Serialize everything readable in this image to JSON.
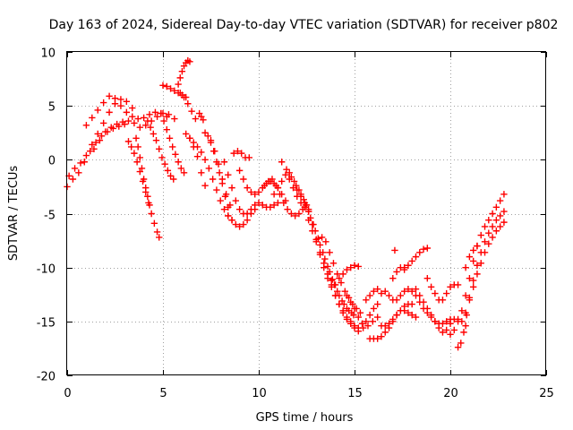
{
  "chart_data": {
    "type": "scatter",
    "title": "Day 163 of 2024, Sidereal Day-to-day VTEC variation (SDTVAR) for receiver p802",
    "xlabel": "GPS time / hours",
    "ylabel": "SDTVAR / TECUs",
    "xlim": [
      0,
      25
    ],
    "ylim": [
      -20,
      10
    ],
    "xticks": [
      "0",
      "5",
      "10",
      "15",
      "20",
      "25"
    ],
    "yticks": [
      "-20",
      "-15",
      "-10",
      "-5",
      "0",
      "5",
      "10"
    ],
    "grid": true,
    "marker": "plus",
    "color": "#ff0000",
    "series": [
      {
        "x": [
          0.0,
          0.3,
          0.6,
          0.9,
          1.2,
          1.5,
          1.8,
          2.1,
          2.4,
          2.7,
          3.0
        ],
        "y": [
          -2.5,
          -1.8,
          -1.2,
          -0.2,
          0.8,
          1.6,
          2.2,
          2.6,
          2.9,
          3.1,
          3.3
        ]
      },
      {
        "x": [
          0.1,
          0.4,
          0.7,
          1.0,
          1.3,
          1.6,
          1.9,
          2.2,
          2.5,
          2.8,
          3.1,
          3.4
        ],
        "y": [
          -1.5,
          -0.8,
          -0.3,
          0.4,
          1.4,
          2.4,
          3.4,
          4.4,
          5.2,
          5.6,
          5.4,
          4.8
        ]
      },
      {
        "x": [
          1.0,
          1.3,
          1.6,
          1.9,
          2.2,
          2.5,
          2.8,
          3.1,
          3.4,
          3.7,
          4.0,
          4.3,
          4.6,
          4.9,
          5.2
        ],
        "y": [
          3.2,
          3.9,
          4.6,
          5.3,
          5.9,
          5.7,
          5.0,
          4.4,
          4.0,
          3.8,
          3.9,
          4.2,
          4.4,
          4.3,
          4.0
        ]
      },
      {
        "x": [
          1.4,
          1.7,
          2.0,
          2.3,
          2.6,
          2.9,
          3.2,
          3.5,
          3.8,
          4.1,
          4.4,
          4.7,
          5.0,
          5.3,
          5.6
        ],
        "y": [
          1.0,
          1.8,
          2.6,
          3.0,
          3.3,
          3.5,
          3.6,
          3.4,
          3.0,
          3.2,
          3.6,
          4.0,
          4.3,
          4.2,
          3.8
        ]
      },
      {
        "x": [
          3.2,
          3.35,
          3.5,
          3.65,
          3.8,
          3.95,
          4.1,
          4.25,
          4.4,
          4.55,
          4.7,
          4.8
        ],
        "y": [
          1.7,
          1.2,
          0.6,
          -0.2,
          -1.1,
          -2.0,
          -3.0,
          -4.0,
          -5.0,
          -5.9,
          -6.7,
          -7.2
        ]
      },
      {
        "x": [
          3.6,
          3.7,
          3.8,
          3.9,
          4.0,
          4.1,
          4.2,
          4.3
        ],
        "y": [
          2.0,
          1.2,
          0.2,
          -0.8,
          -1.8,
          -2.6,
          -3.4,
          -4.2
        ]
      },
      {
        "x": [
          4.2,
          4.35,
          4.5,
          4.65,
          4.8,
          4.95,
          5.1,
          5.25,
          5.4,
          5.55
        ],
        "y": [
          3.6,
          3.0,
          2.4,
          1.8,
          1.0,
          0.2,
          -0.4,
          -1.0,
          -1.5,
          -1.8
        ]
      },
      {
        "x": [
          4.9,
          5.05,
          5.2,
          5.35,
          5.5,
          5.65,
          5.8,
          5.95,
          6.1
        ],
        "y": [
          4.3,
          3.6,
          2.8,
          2.0,
          1.2,
          0.5,
          -0.2,
          -0.8,
          -1.2
        ]
      },
      {
        "x": [
          5.0,
          5.2,
          5.4,
          5.6,
          5.8,
          6.0,
          6.2
        ],
        "y": [
          6.9,
          6.8,
          6.6,
          6.4,
          6.2,
          6.0,
          5.8
        ]
      },
      {
        "x": [
          5.8,
          5.9,
          6.0,
          6.1,
          6.2,
          6.3,
          6.4
        ],
        "y": [
          7.0,
          7.6,
          8.2,
          8.7,
          9.0,
          9.2,
          9.1
        ]
      },
      {
        "x": [
          5.9,
          6.1,
          6.3,
          6.5,
          6.7
        ],
        "y": [
          6.2,
          5.8,
          5.2,
          4.5,
          3.8
        ]
      },
      {
        "x": [
          6.9,
          7.0,
          7.1
        ],
        "y": [
          4.3,
          4.0,
          3.7
        ]
      },
      {
        "x": [
          6.4,
          6.6,
          6.8,
          7.0,
          7.2
        ],
        "y": [
          2.0,
          1.2,
          0.3,
          -1.2,
          -2.4
        ]
      },
      {
        "x": [
          6.2,
          6.4,
          6.6,
          6.8,
          7.0,
          7.2,
          7.4,
          7.6,
          7.8,
          8.0,
          8.2,
          8.4,
          8.6
        ],
        "y": [
          2.4,
          2.0,
          1.6,
          1.2,
          0.7,
          0.0,
          -0.8,
          -1.8,
          -2.8,
          -3.8,
          -4.6,
          -5.2,
          -5.6
        ]
      },
      {
        "x": [
          7.2,
          7.35,
          7.5,
          7.65,
          7.8,
          7.95,
          8.1,
          8.25,
          8.4
        ],
        "y": [
          2.5,
          2.2,
          1.6,
          0.8,
          -0.2,
          -1.2,
          -2.2,
          -3.4,
          -4.4
        ]
      },
      {
        "x": [
          7.5,
          7.7,
          7.9,
          8.1,
          8.3,
          8.5
        ],
        "y": [
          1.8,
          0.8,
          -0.4,
          -1.8,
          -3.2,
          -4.2
        ]
      },
      {
        "x": [
          8.2,
          8.4,
          8.6,
          8.8,
          9.0,
          9.2,
          9.4,
          9.6,
          9.8,
          10.0,
          10.2,
          10.4,
          10.6,
          10.8,
          11.0
        ],
        "y": [
          -0.2,
          -1.4,
          -2.6,
          -3.8,
          -4.6,
          -5.0,
          -5.0,
          -4.6,
          -4.2,
          -4.0,
          -4.2,
          -4.4,
          -4.4,
          -4.2,
          -4.0
        ]
      },
      {
        "x": [
          8.4,
          8.6,
          8.8,
          9.0,
          9.2,
          9.4,
          9.6,
          9.8
        ],
        "y": [
          -5.2,
          -5.6,
          -6.0,
          -6.2,
          -6.0,
          -5.6,
          -5.0,
          -4.6
        ]
      },
      {
        "x": [
          8.7,
          8.9,
          9.1,
          9.3,
          9.5
        ],
        "y": [
          0.6,
          0.8,
          0.6,
          0.2,
          0.2
        ]
      },
      {
        "x": [
          9.0,
          9.2,
          9.4,
          9.6,
          9.8,
          10.0,
          10.2,
          10.4,
          10.6,
          10.8,
          11.0,
          11.2,
          11.4
        ],
        "y": [
          -1.0,
          -1.8,
          -2.6,
          -3.0,
          -3.2,
          -3.0,
          -2.6,
          -2.2,
          -2.0,
          -2.2,
          -2.6,
          -3.2,
          -3.8
        ]
      },
      {
        "x": [
          10.3,
          10.5,
          10.7,
          10.9,
          11.1,
          11.3,
          11.5,
          11.7,
          11.9,
          12.1,
          12.3,
          12.5
        ],
        "y": [
          -2.4,
          -2.0,
          -1.8,
          -2.4,
          -3.2,
          -4.0,
          -4.6,
          -5.0,
          -5.2,
          -5.0,
          -4.6,
          -4.2
        ]
      },
      {
        "x": [
          10.8,
          11.0,
          11.2,
          11.4,
          11.6,
          11.8,
          12.0,
          12.2,
          12.4,
          12.6
        ],
        "y": [
          -3.2,
          -2.6,
          -2.0,
          -1.4,
          -1.8,
          -2.6,
          -3.4,
          -4.0,
          -4.4,
          -4.6
        ]
      },
      {
        "x": [
          11.2,
          11.45,
          11.7,
          11.95,
          12.2,
          12.45,
          12.7,
          12.95,
          13.2,
          13.45,
          13.7,
          13.95,
          14.2,
          14.45,
          14.7,
          14.95
        ],
        "y": [
          -0.2,
          -0.9,
          -1.6,
          -2.4,
          -3.2,
          -4.2,
          -5.4,
          -6.6,
          -7.9,
          -9.2,
          -10.4,
          -11.6,
          -12.6,
          -13.4,
          -14.0,
          -14.4
        ]
      },
      {
        "x": [
          11.6,
          11.85,
          12.1,
          12.35,
          12.6,
          12.85,
          13.1,
          13.35,
          13.6,
          13.85,
          14.1,
          14.35,
          14.6,
          14.85
        ],
        "y": [
          -1.2,
          -2.0,
          -2.8,
          -3.7,
          -4.8,
          -6.0,
          -7.3,
          -8.6,
          -9.9,
          -11.1,
          -12.2,
          -13.1,
          -13.8,
          -14.2
        ]
      },
      {
        "x": [
          12.0,
          12.2,
          12.4,
          12.6,
          12.8,
          13.0,
          13.2,
          13.4,
          13.6,
          13.8,
          14.0,
          14.2,
          14.4,
          14.6,
          14.8,
          15.0,
          15.2
        ],
        "y": [
          -2.8,
          -3.4,
          -4.0,
          -4.8,
          -6.0,
          -7.4,
          -8.8,
          -10.0,
          -11.0,
          -11.8,
          -12.6,
          -13.4,
          -14.2,
          -14.8,
          -15.2,
          -15.6,
          -15.9
        ]
      },
      {
        "x": [
          12.6,
          12.8,
          13.0,
          13.2,
          13.4,
          13.6,
          13.8,
          14.0,
          14.2,
          14.4,
          14.6,
          14.8,
          15.0
        ],
        "y": [
          -5.6,
          -6.6,
          -7.6,
          -8.6,
          -9.6,
          -10.6,
          -11.6,
          -12.6,
          -13.4,
          -14.0,
          -14.6,
          -15.0,
          -15.4
        ]
      },
      {
        "x": [
          13.3,
          13.5,
          13.7,
          13.9,
          14.1,
          14.3,
          14.5,
          14.7,
          14.9,
          15.1,
          15.3
        ],
        "y": [
          -7.2,
          -7.6,
          -8.6,
          -9.6,
          -10.6,
          -11.4,
          -12.2,
          -12.8,
          -13.4,
          -13.8,
          -14.2
        ]
      },
      {
        "x": [
          13.8,
          14.0,
          14.2,
          14.4,
          14.6,
          14.8,
          15.0,
          15.2
        ],
        "y": [
          -11.2,
          -11.6,
          -11.0,
          -10.6,
          -10.2,
          -10.0,
          -9.8,
          -9.9
        ]
      },
      {
        "x": [
          14.6,
          14.8,
          15.0,
          15.2,
          15.4,
          15.6,
          15.8,
          16.0,
          16.2
        ],
        "y": [
          -12.6,
          -13.2,
          -13.8,
          -14.6,
          -15.2,
          -15.0,
          -14.4,
          -13.8,
          -13.4
        ]
      },
      {
        "x": [
          15.2,
          15.45,
          15.7,
          15.95,
          16.2
        ],
        "y": [
          -15.6,
          -15.6,
          -15.4,
          -15.0,
          -14.6
        ]
      },
      {
        "x": [
          15.6,
          15.8,
          16.0,
          16.2,
          16.4
        ],
        "y": [
          -13.0,
          -12.6,
          -12.2,
          -12.0,
          -12.4
        ]
      },
      {
        "x": [
          15.8,
          16.0,
          16.2,
          16.4,
          16.6,
          16.8,
          17.0,
          17.2,
          17.4,
          17.6,
          17.8,
          18.0,
          18.2
        ],
        "y": [
          -16.6,
          -16.6,
          -16.6,
          -16.4,
          -16.0,
          -15.6,
          -15.0,
          -14.4,
          -14.0,
          -14.0,
          -14.2,
          -14.4,
          -14.6
        ]
      },
      {
        "x": [
          16.4,
          16.6,
          16.8,
          17.0,
          17.2,
          17.4,
          17.6,
          17.8,
          18.0
        ],
        "y": [
          -15.4,
          -15.4,
          -15.2,
          -14.8,
          -14.4,
          -14.0,
          -13.6,
          -13.4,
          -13.4
        ]
      },
      {
        "x": [
          16.6,
          16.8,
          17.0,
          17.2,
          17.4,
          17.6,
          17.8,
          18.0,
          18.2,
          18.4,
          18.6,
          18.8,
          19.0,
          19.2,
          19.4,
          19.6,
          19.8,
          20.0
        ],
        "y": [
          -12.2,
          -12.6,
          -13.0,
          -13.0,
          -12.6,
          -12.2,
          -12.0,
          -12.2,
          -12.6,
          -13.2,
          -13.8,
          -14.2,
          -14.6,
          -15.0,
          -15.2,
          -15.2,
          -15.0,
          -14.8
        ]
      },
      {
        "x": [
          17.0,
          17.2,
          17.4,
          17.6
        ],
        "y": [
          -11.0,
          -10.4,
          -10.0,
          -10.0
        ]
      },
      {
        "x": [
          17.1
        ],
        "y": [
          -8.4
        ]
      },
      {
        "x": [
          17.6,
          17.8,
          18.0,
          18.2,
          18.4,
          18.6,
          18.8
        ],
        "y": [
          -10.2,
          -9.8,
          -9.4,
          -9.0,
          -8.6,
          -8.3,
          -8.2
        ]
      },
      {
        "x": [
          18.2,
          18.4,
          18.6,
          18.8,
          19.0,
          19.2,
          19.4,
          19.6,
          19.8,
          20.0,
          20.2,
          20.4,
          20.6,
          20.8
        ],
        "y": [
          -12.0,
          -12.6,
          -13.2,
          -13.8,
          -14.4,
          -15.0,
          -15.6,
          -16.0,
          -15.8,
          -15.2,
          -14.8,
          -14.8,
          -15.0,
          -15.4
        ]
      },
      {
        "x": [
          18.8,
          19.0,
          19.2,
          19.4,
          19.6,
          19.8,
          20.0,
          20.2,
          20.4
        ],
        "y": [
          -11.0,
          -11.8,
          -12.4,
          -13.0,
          -13.0,
          -12.4,
          -11.8,
          -11.6,
          -11.6
        ]
      },
      {
        "x": [
          20.0,
          20.2,
          20.4,
          20.6,
          20.8,
          21.0,
          21.2,
          21.4,
          21.6,
          21.8,
          22.0,
          22.2,
          22.4,
          22.6,
          22.8
        ],
        "y": [
          -16.2,
          -15.8,
          -15.0,
          -14.0,
          -12.6,
          -11.0,
          -9.4,
          -8.0,
          -7.0,
          -6.2,
          -5.6,
          -5.0,
          -4.4,
          -3.8,
          -3.2
        ]
      },
      {
        "x": [
          20.4,
          20.55,
          20.7,
          20.85,
          21.0,
          21.2,
          21.4,
          21.6,
          21.8,
          22.0,
          22.2,
          22.4,
          22.6,
          22.8
        ],
        "y": [
          -17.4,
          -17.0,
          -16.0,
          -14.4,
          -12.8,
          -11.2,
          -9.8,
          -8.6,
          -7.6,
          -6.8,
          -6.2,
          -5.6,
          -5.2,
          -4.8
        ]
      },
      {
        "x": [
          20.8,
          21.0,
          21.2,
          21.4,
          21.6,
          21.8,
          22.0,
          22.2,
          22.4,
          22.6,
          22.8
        ],
        "y": [
          -14.2,
          -13.0,
          -11.8,
          -10.6,
          -9.6,
          -8.6,
          -7.8,
          -7.2,
          -6.6,
          -6.2,
          -5.8
        ]
      },
      {
        "x": [
          20.8,
          21.0,
          21.2,
          21.4
        ],
        "y": [
          -10.0,
          -9.0,
          -8.4,
          -8.0
        ]
      }
    ]
  }
}
